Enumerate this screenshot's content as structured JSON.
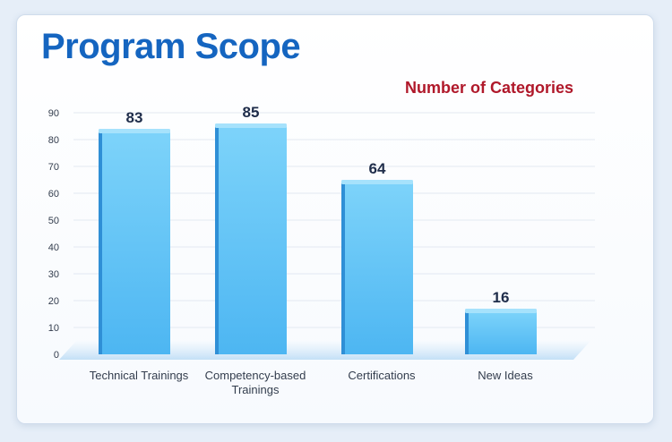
{
  "chart_data": {
    "type": "bar",
    "title": "Program Scope",
    "legend": "Number of Categories",
    "legend_position": "top-right",
    "categories": [
      [
        "Technical Trainings"
      ],
      [
        "Competency-based",
        "Trainings"
      ],
      [
        "Certifications"
      ],
      [
        "New Ideas"
      ]
    ],
    "values": [
      83,
      85,
      64,
      16
    ],
    "value_labels": [
      "83",
      "85",
      "64",
      "16"
    ],
    "yticks": [
      "0",
      "10",
      "20",
      "30",
      "40",
      "50",
      "60",
      "70",
      "80",
      "90"
    ],
    "ylim": [
      0,
      90
    ],
    "grid": true,
    "colors": {
      "bar_top": "#7dd3fa",
      "bar_mid": "#4db6f2",
      "bar_side": "#2f8fd6",
      "bar_cap": "#a6e2fc",
      "value_label": "#1f2d4a",
      "tick_label": "#333d4d",
      "gridline": "#e3e9f1"
    }
  }
}
